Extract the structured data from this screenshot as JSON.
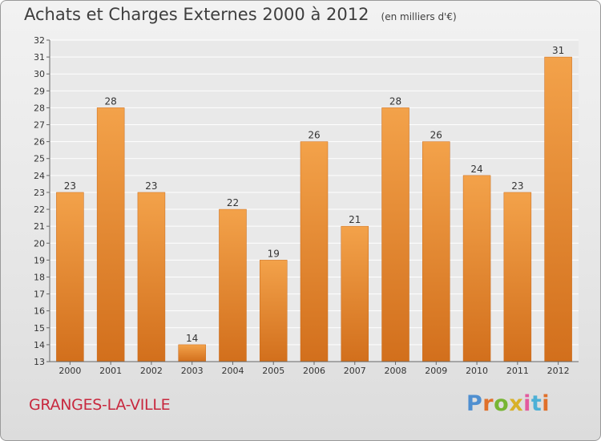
{
  "header": {
    "title": "Achats et Charges Externes 2000 à 2012",
    "unit": "(en milliers d'€)"
  },
  "footer": {
    "commune": "GRANGES-LA-VILLE",
    "brand": "Proxiti",
    "brand_colors": [
      "#4f8fd0",
      "#e0702a",
      "#77b534",
      "#d8b12a",
      "#e35a9e",
      "#4db0d6",
      "#e0702a"
    ]
  },
  "colors": {
    "bar": "#f3a24a",
    "bar_dark": "#d26f1c",
    "grid": "#ffffff",
    "commune": "#c8283e"
  },
  "chart_data": {
    "type": "bar",
    "title": "Achats et Charges Externes 2000 à 2012",
    "subtitle": "(en milliers d'€)",
    "categories": [
      "2000",
      "2001",
      "2002",
      "2003",
      "2004",
      "2005",
      "2006",
      "2007",
      "2008",
      "2009",
      "2010",
      "2011",
      "2012"
    ],
    "values": [
      23,
      28,
      23,
      14,
      22,
      19,
      26,
      21,
      28,
      26,
      24,
      23,
      31
    ],
    "ylim": [
      13,
      32
    ],
    "yticks": [
      13,
      14,
      15,
      16,
      17,
      18,
      19,
      20,
      21,
      22,
      23,
      24,
      25,
      26,
      27,
      28,
      29,
      30,
      31,
      32
    ],
    "grid": true,
    "xlabel": "",
    "ylabel": ""
  }
}
